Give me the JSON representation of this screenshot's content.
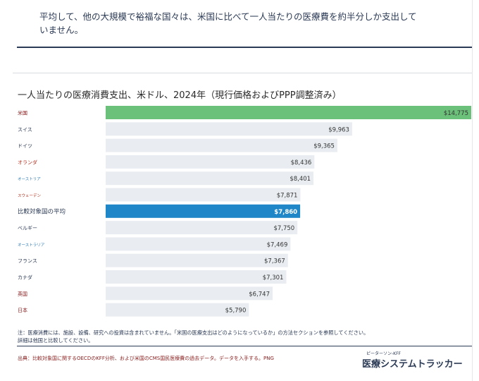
{
  "headline": "平均して、他の大規模で裕福な国々は、米国に比べて一人当たりの医療費を約半分しか支出していません。",
  "chart_data": {
    "type": "bar",
    "orientation": "horizontal",
    "title": "一人当たりの医療消費支出、米ドル、2024年（現行価格およびPPP調整済み）",
    "categories": [
      "米国",
      "スイス",
      "ドイツ",
      "オランダ",
      "オーストリア",
      "スウェーデン",
      "比較対象国の平均",
      "ベルギー",
      "オーストラリア",
      "フランス",
      "カナダ",
      "英国",
      "日本"
    ],
    "values": [
      14775,
      9963,
      9365,
      8436,
      8401,
      7871,
      7860,
      7750,
      7469,
      7367,
      7301,
      6747,
      5790
    ],
    "value_labels": [
      "$14,775",
      "$9,963",
      "$9,365",
      "$8,436",
      "$8,401",
      "$7,871",
      "$7,860",
      "$7,750",
      "$7,469",
      "$7,367",
      "$7,301",
      "$6,747",
      "$5,790"
    ],
    "xlim": [
      0,
      14775
    ],
    "colors": {
      "us": "#6cc17a",
      "average": "#1f87c7",
      "other": "#e9edf1",
      "track": "#eef1f4"
    },
    "label_colors": [
      "#8a1c1c",
      "#2b3a55",
      "#2b3a55",
      "#b0301f",
      "#2c7bb6",
      "#b0301f",
      "#2b3a55",
      "#2b3a55",
      "#2c7bb6",
      "#2b3a55",
      "#2b3a55",
      "#8a1c1c",
      "#8a1c1c"
    ]
  },
  "note": {
    "line1": "注：医療消費には、施設、設備、研究への投資は含まれていません。「米国の医療支出はどのようになっているか」の方法セクションを参照してください。",
    "line2": "詳細は他国と比較してください。"
  },
  "source": "出典：比較対象国に関するOECDのKFF分析、および米国のCMS国民医療費の過去データ。データを入手する。PNG",
  "brand": {
    "small": "ピーターソン-KFF",
    "main": "医療システムトラッカー"
  }
}
